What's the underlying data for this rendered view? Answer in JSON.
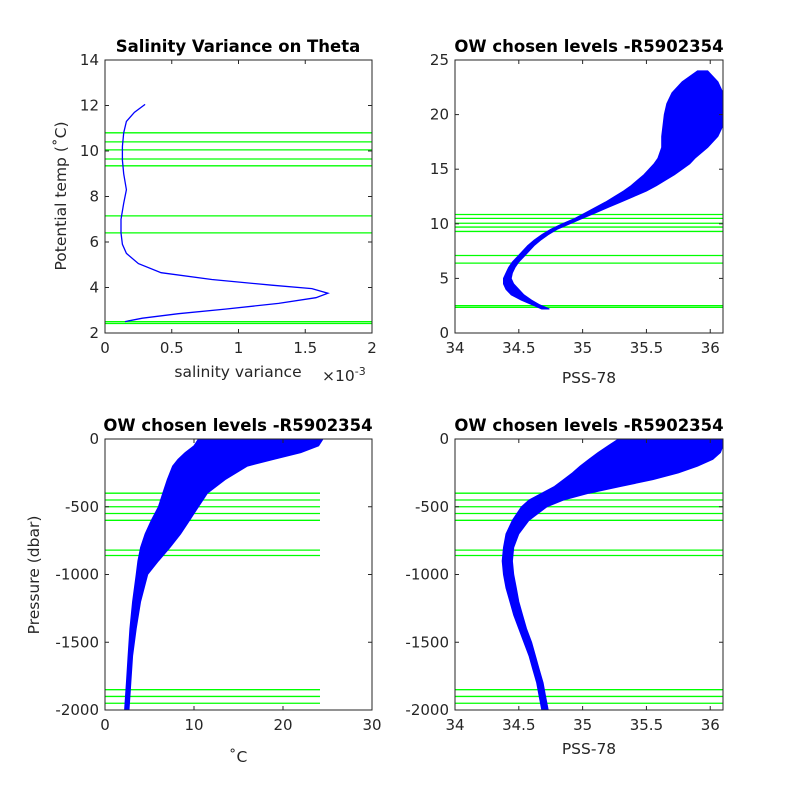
{
  "colors": {
    "profile": "#0000ff",
    "level": "#00ff00",
    "axis": "#262626"
  },
  "chart_data": [
    {
      "type": "line",
      "title": "Salinity Variance on Theta",
      "xlabel": "salinity variance",
      "x_exponent_label": "×10",
      "x_exponent": "-3",
      "ylabel": "Potential temp (˚C)",
      "xlim": [
        0,
        2
      ],
      "ylim": [
        2,
        14
      ],
      "xticks": [
        "0",
        "0.5",
        "1",
        "1.5",
        "2"
      ],
      "yticks": [
        "2",
        "4",
        "6",
        "8",
        "10",
        "12",
        "14"
      ],
      "series": [
        {
          "x": [
            0.3,
            0.22,
            0.16,
            0.14,
            0.13,
            0.13,
            0.14,
            0.16,
            0.14,
            0.12,
            0.12,
            0.13,
            0.16,
            0.25,
            0.42,
            0.8,
            1.25,
            1.55,
            1.67,
            1.58,
            1.3,
            0.9,
            0.55,
            0.28,
            0.15
          ],
          "y": [
            12.05,
            11.7,
            11.3,
            10.8,
            10.2,
            9.6,
            9.0,
            8.3,
            7.7,
            7.0,
            6.4,
            5.9,
            5.5,
            5.05,
            4.65,
            4.35,
            4.1,
            3.95,
            3.75,
            3.55,
            3.3,
            3.05,
            2.85,
            2.65,
            2.5
          ]
        }
      ],
      "levels": [
        2.42,
        2.5,
        6.4,
        7.15,
        9.35,
        9.65,
        10.05,
        10.4,
        10.8
      ]
    },
    {
      "type": "line",
      "title": "OW chosen levels -R5902354",
      "xlabel": "PSS-78",
      "ylabel": "",
      "xlim": [
        34,
        36.1
      ],
      "ylim": [
        0,
        25
      ],
      "xticks": [
        "34",
        "34.5",
        "35",
        "35.5",
        "36"
      ],
      "yticks": [
        "0",
        "5",
        "10",
        "15",
        "20",
        "25"
      ],
      "envelope": {
        "y": [
          2.2,
          2.6,
          3.0,
          3.5,
          4.0,
          4.5,
          5.0,
          5.5,
          6.0,
          6.5,
          7.0,
          7.5,
          8.0,
          8.5,
          9.0,
          9.5,
          10.0,
          10.5,
          11.0,
          11.5,
          12.0,
          12.5,
          13.0,
          13.5,
          14.0,
          14.5,
          15.0,
          15.5,
          16.0,
          17.0,
          18.0,
          19.0,
          20.0,
          21.0,
          22.0,
          23.0,
          24.0
        ],
        "x_min": [
          34.68,
          34.6,
          34.52,
          34.44,
          34.4,
          34.38,
          34.38,
          34.4,
          34.42,
          34.45,
          34.49,
          34.53,
          34.57,
          34.62,
          34.68,
          34.75,
          34.84,
          34.94,
          35.02,
          35.1,
          35.18,
          35.25,
          35.32,
          35.38,
          35.43,
          35.48,
          35.52,
          35.56,
          35.59,
          35.62,
          35.62,
          35.63,
          35.64,
          35.66,
          35.7,
          35.78,
          35.9
        ],
        "x_max": [
          34.74,
          34.66,
          34.6,
          34.54,
          34.5,
          34.46,
          34.44,
          34.45,
          34.47,
          34.5,
          34.54,
          34.58,
          34.62,
          34.67,
          34.73,
          34.8,
          34.9,
          35.0,
          35.1,
          35.2,
          35.3,
          35.4,
          35.5,
          35.58,
          35.65,
          35.72,
          35.78,
          35.84,
          35.88,
          35.98,
          36.06,
          36.1,
          36.1,
          36.1,
          36.1,
          36.06,
          35.98
        ]
      },
      "levels": [
        2.35,
        2.5,
        6.4,
        7.1,
        9.3,
        9.7,
        10.05,
        10.5,
        10.85
      ]
    },
    {
      "type": "line",
      "title": "OW chosen levels -R5902354",
      "xlabel": "˚C",
      "ylabel": "Pressure (dbar)",
      "xlim": [
        0,
        30
      ],
      "ylim": [
        -2000,
        0
      ],
      "xticks": [
        "0",
        "10",
        "20",
        "30"
      ],
      "yticks": [
        "-2000",
        "-1500",
        "-1000",
        "-500",
        "0"
      ],
      "envelope": {
        "y": [
          0,
          -50,
          -100,
          -150,
          -200,
          -300,
          -400,
          -500,
          -600,
          -700,
          -800,
          -900,
          -1000,
          -1200,
          -1400,
          -1600,
          -1800,
          -2000
        ],
        "x_min": [
          10.5,
          10.0,
          9.0,
          8.2,
          7.6,
          7.0,
          6.5,
          6.0,
          5.2,
          4.5,
          4.0,
          3.7,
          3.5,
          3.1,
          2.8,
          2.6,
          2.4,
          2.2
        ],
        "x_max": [
          24.5,
          24.0,
          22.0,
          19.0,
          16.0,
          13.5,
          11.5,
          10.5,
          9.5,
          8.5,
          7.3,
          6.0,
          4.8,
          4.0,
          3.5,
          3.1,
          2.9,
          2.7
        ]
      },
      "levels": [
        -400,
        -450,
        -500,
        -550,
        -600,
        -820,
        -860,
        -1850,
        -1900,
        -1950
      ]
    },
    {
      "type": "line",
      "title": "OW chosen levels -R5902354",
      "xlabel": "PSS-78",
      "ylabel": "",
      "xlim": [
        34,
        36.1
      ],
      "ylim": [
        -2000,
        0
      ],
      "xticks": [
        "34",
        "34.5",
        "35",
        "35.5",
        "36"
      ],
      "yticks": [
        "-2000",
        "-1500",
        "-1000",
        "-500",
        "0"
      ],
      "envelope": {
        "y": [
          0,
          -50,
          -100,
          -150,
          -200,
          -250,
          -300,
          -350,
          -400,
          -450,
          -500,
          -600,
          -700,
          -800,
          -900,
          -1000,
          -1100,
          -1200,
          -1300,
          -1400,
          -1500,
          -1600,
          -1700,
          -1800,
          -1900,
          -2000
        ],
        "x_min": [
          35.28,
          35.2,
          35.12,
          35.05,
          34.98,
          34.92,
          34.85,
          34.78,
          34.68,
          34.58,
          34.52,
          34.45,
          34.4,
          34.38,
          34.37,
          34.38,
          34.4,
          34.43,
          34.46,
          34.5,
          34.54,
          34.58,
          34.61,
          34.64,
          34.66,
          34.68
        ],
        "x_max": [
          36.1,
          36.1,
          36.08,
          36.02,
          35.9,
          35.75,
          35.55,
          35.3,
          35.05,
          34.85,
          34.72,
          34.58,
          34.5,
          34.46,
          34.45,
          34.46,
          34.48,
          34.5,
          34.53,
          34.56,
          34.6,
          34.63,
          34.66,
          34.69,
          34.71,
          34.73
        ]
      },
      "levels": [
        -400,
        -450,
        -500,
        -550,
        -600,
        -820,
        -860,
        -1850,
        -1900,
        -1950
      ]
    }
  ]
}
